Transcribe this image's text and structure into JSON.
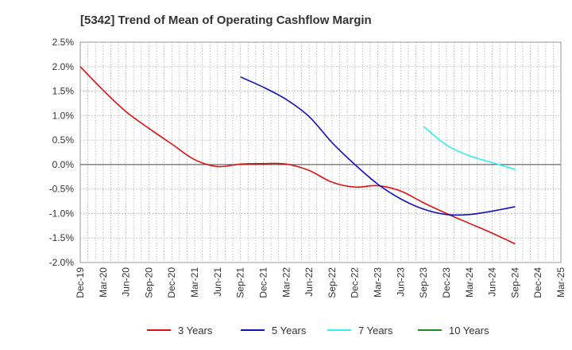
{
  "chart_data": {
    "type": "line",
    "title": "[5342]  Trend of Mean of Operating Cashflow Margin",
    "xlabel": "",
    "ylabel": "",
    "categories": [
      "Dec-19",
      "Mar-20",
      "Jun-20",
      "Sep-20",
      "Dec-20",
      "Mar-21",
      "Jun-21",
      "Sep-21",
      "Dec-21",
      "Mar-22",
      "Jun-22",
      "Sep-22",
      "Dec-22",
      "Mar-23",
      "Jun-23",
      "Sep-23",
      "Dec-23",
      "Mar-24",
      "Jun-24",
      "Sep-24",
      "Dec-24",
      "Mar-25"
    ],
    "ylim": [
      -2.0,
      2.5
    ],
    "yticks": [
      -2.0,
      -1.5,
      -1.0,
      -0.5,
      0.0,
      0.5,
      1.0,
      1.5,
      2.0,
      2.5
    ],
    "ytick_labels": [
      "-2.0%",
      "-1.5%",
      "-1.0%",
      "-0.5%",
      "0.0%",
      "0.5%",
      "1.0%",
      "1.5%",
      "2.0%",
      "2.5%"
    ],
    "grid": true,
    "legend_position": "bottom",
    "series": [
      {
        "name": "3 Years",
        "color": "#dd1111",
        "values": [
          2.0,
          1.52,
          1.08,
          0.74,
          0.42,
          0.1,
          -0.04,
          0.01,
          0.02,
          0.01,
          -0.12,
          -0.36,
          -0.46,
          -0.43,
          -0.54,
          -0.78,
          -1.0,
          -1.2,
          -1.4,
          -1.62,
          null,
          null
        ]
      },
      {
        "name": "5 Years",
        "color": "#1111bb",
        "values": [
          null,
          null,
          null,
          null,
          null,
          null,
          null,
          1.79,
          1.58,
          1.33,
          0.98,
          0.45,
          0.0,
          -0.4,
          -0.7,
          -0.91,
          -1.02,
          -1.02,
          -0.95,
          -0.86,
          null,
          null
        ]
      },
      {
        "name": "7 Years",
        "color": "#33eeee",
        "values": [
          null,
          null,
          null,
          null,
          null,
          null,
          null,
          null,
          null,
          null,
          null,
          null,
          null,
          null,
          null,
          0.78,
          0.4,
          0.18,
          0.04,
          -0.1,
          null,
          null
        ]
      },
      {
        "name": "10 Years",
        "color": "#228822",
        "values": [
          null,
          null,
          null,
          null,
          null,
          null,
          null,
          null,
          null,
          null,
          null,
          null,
          null,
          null,
          null,
          null,
          null,
          null,
          null,
          null,
          null,
          null
        ]
      }
    ]
  }
}
